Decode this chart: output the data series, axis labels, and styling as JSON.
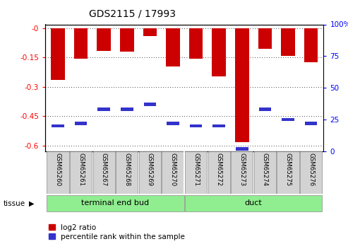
{
  "title": "GDS2115 / 17993",
  "samples": [
    "GSM65260",
    "GSM65261",
    "GSM65267",
    "GSM65268",
    "GSM65269",
    "GSM65270",
    "GSM65271",
    "GSM65272",
    "GSM65273",
    "GSM65274",
    "GSM65275",
    "GSM65276"
  ],
  "log2_ratio": [
    -0.265,
    -0.155,
    -0.115,
    -0.12,
    -0.04,
    -0.195,
    -0.155,
    -0.245,
    -0.585,
    -0.105,
    -0.14,
    -0.175
  ],
  "percentile_rank": [
    20,
    22,
    33,
    33,
    37,
    22,
    20,
    20,
    2,
    33,
    25,
    22
  ],
  "group1_name": "terminal end bud",
  "group1_count": 6,
  "group2_name": "duct",
  "group2_count": 6,
  "group_color": "#90ee90",
  "bar_color": "#cc0000",
  "blue_color": "#3333cc",
  "ylim_left": [
    -0.63,
    0.02
  ],
  "ylim_right": [
    0,
    100
  ],
  "yticks_left": [
    0.0,
    -0.15,
    -0.3,
    -0.45,
    -0.6
  ],
  "yticks_right": [
    0,
    25,
    50,
    75,
    100
  ],
  "ytick_labels_left": [
    "-0",
    "-0.15",
    "-0.3",
    "-0.45",
    "-0.6"
  ],
  "ytick_labels_right": [
    "0",
    "25",
    "50",
    "75",
    "100%"
  ],
  "grid_color": "#000000",
  "bg_color": "#ffffff",
  "tissue_label": "tissue",
  "legend_log2": "log2 ratio",
  "legend_pct": "percentile rank within the sample"
}
